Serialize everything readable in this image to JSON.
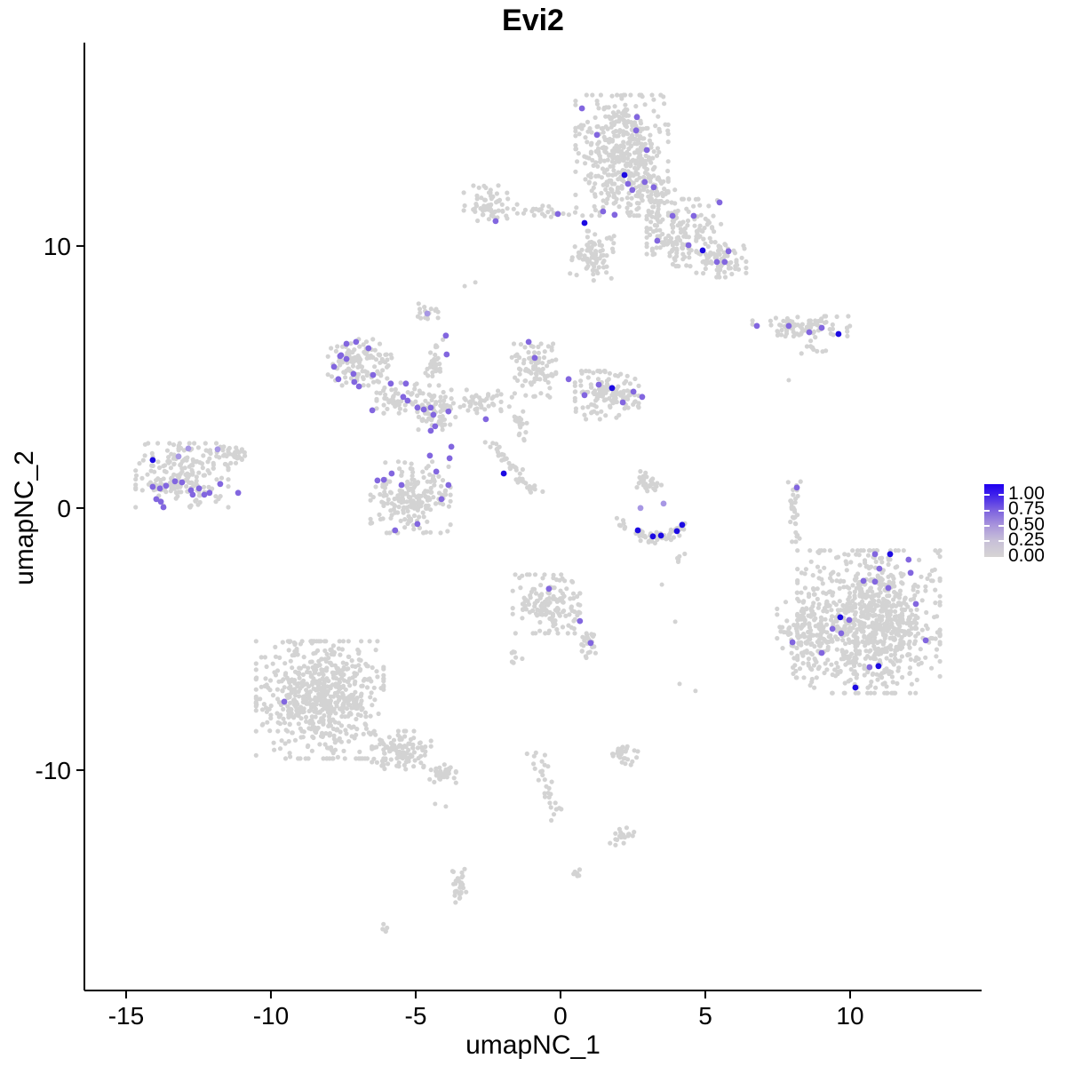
{
  "title": "Evi2",
  "axes": {
    "x": {
      "label": "umapNC_1",
      "ticks": [
        -15,
        -10,
        -5,
        0,
        5,
        10
      ],
      "range": [
        -16.44,
        14.54
      ]
    },
    "y": {
      "label": "umapNC_2",
      "ticks": [
        10,
        0,
        -10
      ],
      "range": [
        -18.41,
        17.76
      ]
    }
  },
  "legend": {
    "labels": [
      "1.00",
      "0.75",
      "0.50",
      "0.25",
      "0.00"
    ],
    "high": "#1f00f0",
    "low": "#d6d4d4"
  },
  "colors": {
    "base": "#d3d3d3",
    "p": "#8266df",
    "lp": "#a797e4",
    "db": "#1c0ae2"
  },
  "chart_data": {
    "type": "scatter",
    "title": "Evi2",
    "xlabel": "umapNC_1",
    "ylabel": "umapNC_2",
    "legend_scale": {
      "min": 0.0,
      "max": 1.0,
      "ticks": [
        1.0,
        0.75,
        0.5,
        0.25,
        0.0
      ]
    },
    "grid": false,
    "clusters": [
      {
        "t": "b",
        "c": [
          2.12,
          13.46
        ],
        "s": [
          0.8,
          1.15
        ],
        "n": 450
      },
      {
        "t": "b",
        "c": [
          3.19,
          11.76
        ],
        "s": [
          0.38,
          0.42
        ],
        "n": 60
      },
      {
        "t": "b",
        "c": [
          4.26,
          10.51
        ],
        "s": [
          0.64,
          0.64
        ],
        "n": 170
      },
      {
        "t": "b",
        "c": [
          1.13,
          9.63
        ],
        "s": [
          0.4,
          0.47
        ],
        "n": 80
      },
      {
        "t": "b",
        "c": [
          5.55,
          9.49
        ],
        "s": [
          0.43,
          0.34
        ],
        "n": 70
      },
      {
        "t": "b",
        "c": [
          -2.42,
          11.59
        ],
        "s": [
          0.46,
          0.36
        ],
        "n": 65
      },
      {
        "t": "b",
        "c": [
          -0.49,
          11.32
        ],
        "s": [
          0.51,
          0.12
        ],
        "n": 22
      },
      {
        "t": "b",
        "c": [
          -4.69,
          7.46
        ],
        "s": [
          0.23,
          0.17
        ],
        "n": 16
      },
      {
        "t": "b",
        "c": [
          -6.93,
          5.56
        ],
        "s": [
          0.55,
          0.44
        ],
        "n": 120
      },
      {
        "t": "b",
        "c": [
          -5.55,
          4.2
        ],
        "s": [
          0.4,
          0.29
        ],
        "n": 55
      },
      {
        "t": "b",
        "c": [
          -4.26,
          3.73
        ],
        "s": [
          0.34,
          0.37
        ],
        "n": 75
      },
      {
        "t": "b",
        "c": [
          -4.36,
          5.56
        ],
        "s": [
          0.15,
          0.44
        ],
        "n": 32
      },
      {
        "t": "b",
        "c": [
          -2.91,
          4.07
        ],
        "s": [
          0.43,
          0.22
        ],
        "n": 45
      },
      {
        "t": "b",
        "c": [
          -0.92,
          5.25
        ],
        "s": [
          0.38,
          0.51
        ],
        "n": 95
      },
      {
        "t": "b",
        "c": [
          1.6,
          4.31
        ],
        "s": [
          0.55,
          0.46
        ],
        "n": 140
      },
      {
        "t": "b",
        "c": [
          -1.41,
          3.19
        ],
        "s": [
          0.18,
          0.34
        ],
        "n": 20
      },
      {
        "t": "b",
        "c": [
          -13.07,
          1.25
        ],
        "s": [
          0.8,
          0.61
        ],
        "n": 210
      },
      {
        "t": "b",
        "c": [
          -11.32,
          2.03
        ],
        "s": [
          0.28,
          0.2
        ],
        "n": 30
      },
      {
        "t": "b",
        "c": [
          -5.18,
          0.41
        ],
        "s": [
          0.69,
          0.68
        ],
        "n": 200
      },
      {
        "t": "b",
        "c": [
          2.98,
          0.92
        ],
        "s": [
          0.26,
          0.24
        ],
        "n": 32
      },
      {
        "t": "b",
        "c": [
          4.05,
          -1.9
        ],
        "s": [
          0.12,
          0.1
        ],
        "n": 5
      },
      {
        "t": "b",
        "c": [
          8.07,
          -0.27
        ],
        "s": [
          0.11,
          0.64
        ],
        "n": 30
      },
      {
        "t": "b",
        "c": [
          8.31,
          6.92
        ],
        "s": [
          0.84,
          0.2
        ],
        "n": 85
      },
      {
        "t": "b",
        "c": [
          8.74,
          6.1
        ],
        "s": [
          0.21,
          0.14
        ],
        "n": 10
      },
      {
        "t": "b",
        "c": [
          10.64,
          -4.34
        ],
        "s": [
          1.23,
          1.36
        ],
        "n": 850
      },
      {
        "t": "b",
        "c": [
          8.34,
          -4.85
        ],
        "s": [
          0.43,
          0.81
        ],
        "n": 110
      },
      {
        "t": "b",
        "c": [
          -8.31,
          -7.32
        ],
        "s": [
          1.1,
          1.12
        ],
        "n": 650
      },
      {
        "t": "b",
        "c": [
          -5.49,
          -9.25
        ],
        "s": [
          0.51,
          0.37
        ],
        "n": 110
      },
      {
        "t": "b",
        "c": [
          -4.11,
          -10.17
        ],
        "s": [
          0.25,
          0.19
        ],
        "n": 35
      },
      {
        "t": "b",
        "c": [
          -0.49,
          -3.66
        ],
        "s": [
          0.58,
          0.56
        ],
        "n": 150
      },
      {
        "t": "b",
        "c": [
          0.95,
          -5.15
        ],
        "s": [
          0.15,
          0.31
        ],
        "n": 26
      },
      {
        "t": "b",
        "c": [
          -1.56,
          -5.76
        ],
        "s": [
          0.12,
          0.27
        ],
        "n": 8
      },
      {
        "t": "b",
        "c": [
          2.15,
          -9.42
        ],
        "s": [
          0.26,
          0.19
        ],
        "n": 28
      },
      {
        "t": "b",
        "c": [
          2.21,
          -12.54
        ],
        "s": [
          0.25,
          0.17
        ],
        "n": 22
      },
      {
        "t": "b",
        "c": [
          0.58,
          -13.9
        ],
        "s": [
          0.09,
          0.15
        ],
        "n": 6
      },
      {
        "t": "b",
        "c": [
          -3.5,
          -14.37
        ],
        "s": [
          0.12,
          0.41
        ],
        "n": 32
      },
      {
        "t": "b",
        "c": [
          -6.01,
          -16.03
        ],
        "s": [
          0.12,
          0.08
        ],
        "n": 5
      },
      {
        "t": "s",
        "a": [
          -2.42,
          2.51
        ],
        "b": [
          -0.89,
          0.54
        ],
        "w": 0.1,
        "n": 45
      },
      {
        "t": "s",
        "a": [
          -0.86,
          -9.25
        ],
        "b": [
          -0.09,
          -11.86
        ],
        "w": 0.14,
        "n": 30
      },
      {
        "t": "a",
        "a": [
          1.99,
          -0.41
        ],
        "ctrl": [
          3.19,
          -1.86
        ],
        "b": [
          4.39,
          -0.47
        ],
        "w": 0.1,
        "n": 55
      }
    ],
    "singles": [
      [
        -4.33,
        -11.29
      ],
      [
        -3.96,
        -11.39
      ],
      [
        7.88,
        4.88
      ],
      [
        4.11,
        -6.71
      ],
      [
        4.66,
        -6.98
      ],
      [
        3.5,
        -2.92
      ],
      [
        -3.31,
        8.47
      ],
      [
        -2.94,
        8.61
      ],
      [
        3.96,
        -4.34
      ]
    ],
    "expressing": [
      [
        0.74,
        15.25,
        "p"
      ],
      [
        2.64,
        14.92,
        "p"
      ],
      [
        2.61,
        14.41,
        "p"
      ],
      [
        1.26,
        14.24,
        "p"
      ],
      [
        2.98,
        13.66,
        "p"
      ],
      [
        2.21,
        12.71,
        "db"
      ],
      [
        2.33,
        12.37,
        "p"
      ],
      [
        2.91,
        12.44,
        "p"
      ],
      [
        2.48,
        12.14,
        "p"
      ],
      [
        3.22,
        12.24,
        "p"
      ],
      [
        5.49,
        11.66,
        "p"
      ],
      [
        -0.09,
        11.22,
        "p"
      ],
      [
        1.47,
        11.32,
        "p"
      ],
      [
        1.87,
        11.19,
        "p"
      ],
      [
        0.83,
        10.88,
        "db"
      ],
      [
        3.87,
        11.15,
        "p"
      ],
      [
        4.6,
        11.15,
        "p"
      ],
      [
        3.34,
        10.2,
        "p"
      ],
      [
        4.42,
        10.03,
        "p"
      ],
      [
        4.91,
        9.83,
        "db"
      ],
      [
        5.8,
        9.8,
        "p"
      ],
      [
        5.4,
        9.39,
        "p"
      ],
      [
        5.67,
        9.39,
        "p"
      ],
      [
        -2.24,
        10.95,
        "p"
      ],
      [
        6.78,
        6.95,
        "p"
      ],
      [
        7.88,
        6.95,
        "p"
      ],
      [
        8.59,
        6.71,
        "p"
      ],
      [
        9.02,
        6.88,
        "p"
      ],
      [
        9.6,
        6.64,
        "db"
      ],
      [
        -7.39,
        6.27,
        "p"
      ],
      [
        -7.06,
        6.34,
        "p"
      ],
      [
        -6.63,
        6.1,
        "p"
      ],
      [
        -7.58,
        5.83,
        "p"
      ],
      [
        -7.61,
        5.8,
        "p"
      ],
      [
        -7.39,
        5.69,
        "p"
      ],
      [
        -7.82,
        5.39,
        "p"
      ],
      [
        -7.15,
        5.12,
        "p"
      ],
      [
        -6.47,
        5.08,
        "p"
      ],
      [
        -7.67,
        4.92,
        "p"
      ],
      [
        -7.12,
        4.81,
        "p"
      ],
      [
        -6.96,
        4.64,
        "p"
      ],
      [
        -5.86,
        4.75,
        "p"
      ],
      [
        -5.34,
        4.75,
        "p"
      ],
      [
        -6.5,
        3.73,
        "p"
      ],
      [
        -5.43,
        4.24,
        "p"
      ],
      [
        -5.28,
        4.1,
        "p"
      ],
      [
        -4.94,
        3.83,
        "p"
      ],
      [
        -4.72,
        3.76,
        "p"
      ],
      [
        -4.48,
        3.83,
        "p"
      ],
      [
        -4.39,
        3.56,
        "p"
      ],
      [
        -3.87,
        3.69,
        "p"
      ],
      [
        -4.33,
        3.12,
        "p"
      ],
      [
        -4.48,
        2.95,
        "p"
      ],
      [
        -3.96,
        6.58,
        "p"
      ],
      [
        -3.93,
        5.86,
        "p"
      ],
      [
        -2.58,
        3.39,
        "p"
      ],
      [
        -3.77,
        2.34,
        "p"
      ],
      [
        -4.51,
        2.0,
        "p"
      ],
      [
        -4.6,
        7.42,
        "lp"
      ],
      [
        -1.1,
        6.34,
        "p"
      ],
      [
        -0.89,
        5.73,
        "p"
      ],
      [
        0.28,
        4.92,
        "p"
      ],
      [
        0.83,
        4.31,
        "p"
      ],
      [
        1.32,
        4.71,
        "p"
      ],
      [
        1.78,
        4.58,
        "db"
      ],
      [
        2.15,
        4.03,
        "p"
      ],
      [
        2.52,
        4.44,
        "p"
      ],
      [
        2.82,
        4.24,
        "p"
      ],
      [
        -14.08,
        1.83,
        "db"
      ],
      [
        -13.19,
        1.97,
        "lp"
      ],
      [
        -12.85,
        2.27,
        "lp"
      ],
      [
        -11.84,
        2.24,
        "lp"
      ],
      [
        -14.08,
        0.81,
        "p"
      ],
      [
        -13.83,
        0.75,
        "p"
      ],
      [
        -13.62,
        0.85,
        "p"
      ],
      [
        -13.31,
        1.02,
        "p"
      ],
      [
        -13.07,
        0.98,
        "p"
      ],
      [
        -12.76,
        0.68,
        "p"
      ],
      [
        -12.48,
        0.75,
        "p"
      ],
      [
        -12.12,
        0.58,
        "p"
      ],
      [
        -12.7,
        0.51,
        "p"
      ],
      [
        -11.75,
        0.92,
        "p"
      ],
      [
        -11.13,
        0.58,
        "p"
      ],
      [
        -13.96,
        0.34,
        "p"
      ],
      [
        -13.8,
        0.24,
        "p"
      ],
      [
        -13.71,
        0.03,
        "p"
      ],
      [
        -12.3,
        0.51,
        "p"
      ],
      [
        -6.1,
        1.08,
        "p"
      ],
      [
        -5.49,
        0.88,
        "p"
      ],
      [
        -3.87,
        0.88,
        "p"
      ],
      [
        -4.11,
        0.34,
        "p"
      ],
      [
        -4.94,
        -0.61,
        "p"
      ],
      [
        -5.71,
        -0.85,
        "p"
      ],
      [
        -6.32,
        1.05,
        "p"
      ],
      [
        -5.83,
        1.32,
        "p"
      ],
      [
        -4.29,
        1.39,
        "p"
      ],
      [
        -3.83,
        1.9,
        "p"
      ],
      [
        -1.96,
        1.32,
        "db"
      ],
      [
        2.67,
        -0.85,
        "db"
      ],
      [
        3.19,
        -1.08,
        "db"
      ],
      [
        3.47,
        -1.05,
        "db"
      ],
      [
        4.02,
        -0.88,
        "db"
      ],
      [
        4.2,
        -0.64,
        "db"
      ],
      [
        2.76,
        0.0,
        "lp"
      ],
      [
        3.56,
        0.17,
        "lp"
      ],
      [
        8.16,
        0.78,
        "p"
      ],
      [
        10.86,
        -1.76,
        "p"
      ],
      [
        11.38,
        -1.76,
        "db"
      ],
      [
        12.02,
        -1.97,
        "p"
      ],
      [
        11.01,
        -2.31,
        "p"
      ],
      [
        12.09,
        -2.47,
        "p"
      ],
      [
        10.46,
        -2.78,
        "p"
      ],
      [
        10.86,
        -2.81,
        "p"
      ],
      [
        11.32,
        -3.05,
        "p"
      ],
      [
        12.27,
        -3.66,
        "p"
      ],
      [
        9.66,
        -4.17,
        "db"
      ],
      [
        9.97,
        -4.27,
        "p"
      ],
      [
        9.39,
        -4.61,
        "p"
      ],
      [
        9.69,
        -4.78,
        "p"
      ],
      [
        12.61,
        -5.05,
        "p"
      ],
      [
        8.01,
        -5.12,
        "p"
      ],
      [
        9.02,
        -5.53,
        "p"
      ],
      [
        10.67,
        -6.07,
        "p"
      ],
      [
        10.98,
        -6.03,
        "db"
      ],
      [
        10.18,
        -6.85,
        "db"
      ],
      [
        -0.4,
        -3.08,
        "p"
      ],
      [
        0.67,
        -4.31,
        "p"
      ],
      [
        1.04,
        -5.15,
        "p"
      ],
      [
        -9.54,
        -7.39,
        "p"
      ]
    ]
  }
}
